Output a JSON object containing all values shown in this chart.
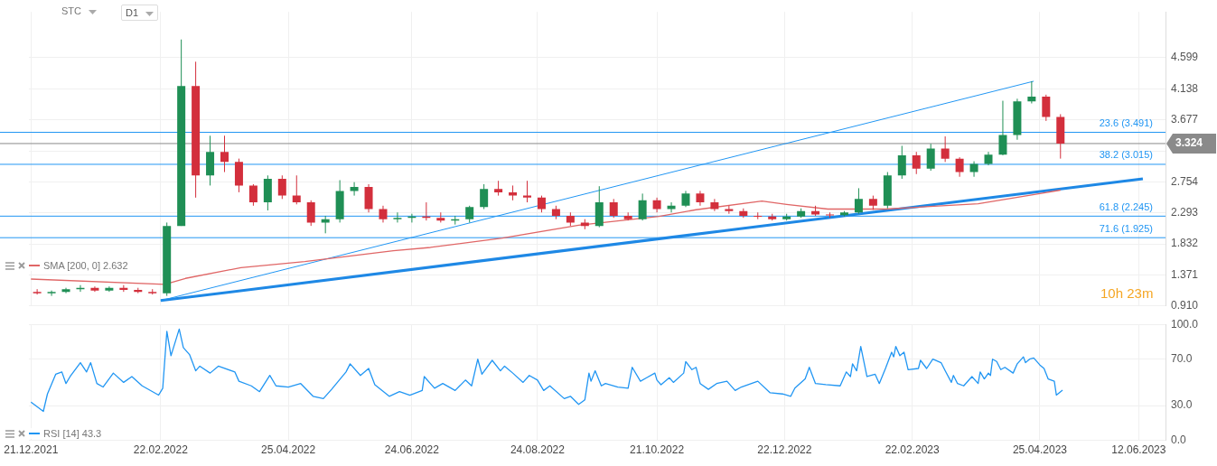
{
  "chart_data": [
    {
      "type": "candlestick",
      "x": [
        "2021-12-24",
        "2021-12-31",
        "2022-01-07",
        "2022-01-14",
        "2022-01-21",
        "2022-01-28",
        "2022-02-04",
        "2022-02-11",
        "2022-02-18",
        "2022-02-25",
        "2022-03-04",
        "2022-03-11",
        "2022-03-18",
        "2022-03-25",
        "2022-04-01",
        "2022-04-08",
        "2022-04-15",
        "2022-04-22",
        "2022-04-29",
        "2022-05-06",
        "2022-05-13",
        "2022-05-20",
        "2022-05-27",
        "2022-06-03",
        "2022-06-10",
        "2022-06-17",
        "2022-06-24",
        "2022-07-01",
        "2022-07-08",
        "2022-07-15",
        "2022-07-22",
        "2022-07-29",
        "2022-08-05",
        "2022-08-12",
        "2022-08-19",
        "2022-08-26",
        "2022-09-02",
        "2022-09-09",
        "2022-09-16",
        "2022-09-23",
        "2022-09-30",
        "2022-10-07",
        "2022-10-14",
        "2022-10-21",
        "2022-10-28",
        "2022-11-04",
        "2022-11-11",
        "2022-11-18",
        "2022-11-25",
        "2022-12-02",
        "2022-12-09",
        "2022-12-16",
        "2022-12-23",
        "2022-12-30",
        "2023-01-06",
        "2023-01-13",
        "2023-01-20",
        "2023-01-27",
        "2023-02-03",
        "2023-02-10",
        "2023-02-17",
        "2023-02-24",
        "2023-03-03",
        "2023-03-10",
        "2023-03-17",
        "2023-03-24",
        "2023-03-31",
        "2023-04-07",
        "2023-04-14",
        "2023-04-21",
        "2023-04-28",
        "2023-05-05"
      ],
      "ohlc": [
        [
          1.12,
          1.16,
          1.08,
          1.1
        ],
        [
          1.1,
          1.14,
          1.06,
          1.12
        ],
        [
          1.12,
          1.18,
          1.1,
          1.16
        ],
        [
          1.16,
          1.22,
          1.12,
          1.18
        ],
        [
          1.18,
          1.2,
          1.12,
          1.14
        ],
        [
          1.14,
          1.2,
          1.12,
          1.18
        ],
        [
          1.18,
          1.22,
          1.12,
          1.15
        ],
        [
          1.15,
          1.18,
          1.1,
          1.12
        ],
        [
          1.12,
          1.16,
          1.08,
          1.1
        ],
        [
          1.1,
          2.15,
          1.06,
          2.1
        ],
        [
          2.1,
          4.87,
          2.1,
          4.18
        ],
        [
          4.18,
          4.54,
          2.52,
          2.85
        ],
        [
          2.85,
          3.44,
          2.7,
          3.2
        ],
        [
          3.2,
          3.44,
          2.9,
          3.05
        ],
        [
          3.05,
          3.1,
          2.6,
          2.7
        ],
        [
          2.7,
          2.72,
          2.4,
          2.45
        ],
        [
          2.45,
          2.85,
          2.33,
          2.8
        ],
        [
          2.8,
          2.85,
          2.5,
          2.55
        ],
        [
          2.55,
          2.85,
          2.42,
          2.45
        ],
        [
          2.45,
          2.48,
          2.1,
          2.15
        ],
        [
          2.15,
          2.25,
          1.99,
          2.2
        ],
        [
          2.2,
          2.78,
          2.15,
          2.62
        ],
        [
          2.62,
          2.75,
          2.55,
          2.68
        ],
        [
          2.68,
          2.72,
          2.3,
          2.35
        ],
        [
          2.35,
          2.4,
          2.15,
          2.2
        ],
        [
          2.2,
          2.3,
          2.15,
          2.22
        ],
        [
          2.22,
          2.28,
          2.15,
          2.24
        ],
        [
          2.24,
          2.45,
          2.18,
          2.22
        ],
        [
          2.22,
          2.3,
          2.15,
          2.18
        ],
        [
          2.18,
          2.25,
          2.12,
          2.2
        ],
        [
          2.2,
          2.4,
          2.15,
          2.38
        ],
        [
          2.38,
          2.72,
          2.35,
          2.65
        ],
        [
          2.65,
          2.77,
          2.55,
          2.6
        ],
        [
          2.6,
          2.7,
          2.48,
          2.55
        ],
        [
          2.55,
          2.77,
          2.45,
          2.52
        ],
        [
          2.52,
          2.55,
          2.3,
          2.35
        ],
        [
          2.35,
          2.4,
          2.2,
          2.25
        ],
        [
          2.25,
          2.3,
          2.1,
          2.15
        ],
        [
          2.15,
          2.2,
          2.05,
          2.1
        ],
        [
          2.1,
          2.69,
          2.08,
          2.45
        ],
        [
          2.45,
          2.5,
          2.22,
          2.25
        ],
        [
          2.25,
          2.3,
          2.18,
          2.2
        ],
        [
          2.2,
          2.58,
          2.18,
          2.48
        ],
        [
          2.48,
          2.52,
          2.3,
          2.35
        ],
        [
          2.35,
          2.45,
          2.3,
          2.4
        ],
        [
          2.4,
          2.62,
          2.38,
          2.58
        ],
        [
          2.58,
          2.62,
          2.4,
          2.45
        ],
        [
          2.45,
          2.5,
          2.32,
          2.35
        ],
        [
          2.35,
          2.4,
          2.28,
          2.32
        ],
        [
          2.32,
          2.36,
          2.22,
          2.25
        ],
        [
          2.25,
          2.3,
          2.2,
          2.24
        ],
        [
          2.24,
          2.28,
          2.18,
          2.2
        ],
        [
          2.2,
          2.28,
          2.18,
          2.24
        ],
        [
          2.24,
          2.36,
          2.22,
          2.32
        ],
        [
          2.32,
          2.4,
          2.25,
          2.27
        ],
        [
          2.27,
          2.3,
          2.22,
          2.26
        ],
        [
          2.26,
          2.32,
          2.24,
          2.3
        ],
        [
          2.3,
          2.66,
          2.28,
          2.5
        ],
        [
          2.5,
          2.55,
          2.34,
          2.4
        ],
        [
          2.4,
          2.9,
          2.36,
          2.85
        ],
        [
          2.85,
          3.29,
          2.8,
          3.15
        ],
        [
          3.15,
          3.2,
          2.87,
          2.95
        ],
        [
          2.95,
          3.32,
          2.92,
          3.25
        ],
        [
          3.25,
          3.43,
          3.05,
          3.1
        ],
        [
          3.1,
          3.12,
          2.83,
          2.9
        ],
        [
          2.9,
          3.06,
          2.83,
          3.02
        ],
        [
          3.02,
          3.2,
          3.0,
          3.16
        ],
        [
          3.16,
          3.96,
          3.15,
          3.45
        ],
        [
          3.45,
          3.99,
          3.38,
          3.95
        ],
        [
          3.95,
          4.25,
          3.92,
          4.02
        ],
        [
          4.02,
          4.05,
          3.66,
          3.72
        ],
        [
          3.72,
          3.76,
          3.1,
          3.324
        ]
      ],
      "colors": [
        "#d32f3c",
        "#1f8f55",
        "#1f8f55",
        "#1f8f55",
        "#d32f3c",
        "#1f8f55",
        "#d32f3c",
        "#d32f3c",
        "#d32f3c",
        "#1f8f55",
        "#1f8f55",
        "#d32f3c",
        "#1f8f55",
        "#d32f3c",
        "#d32f3c",
        "#d32f3c",
        "#1f8f55",
        "#d32f3c",
        "#d32f3c",
        "#d32f3c",
        "#1f8f55",
        "#1f8f55",
        "#1f8f55",
        "#d32f3c",
        "#d32f3c",
        "#1f8f55",
        "#1f8f55",
        "#d32f3c",
        "#d32f3c",
        "#1f8f55",
        "#1f8f55",
        "#1f8f55",
        "#d32f3c",
        "#d32f3c",
        "#d32f3c",
        "#d32f3c",
        "#d32f3c",
        "#d32f3c",
        "#d32f3c",
        "#1f8f55",
        "#d32f3c",
        "#d32f3c",
        "#1f8f55",
        "#d32f3c",
        "#1f8f55",
        "#1f8f55",
        "#d32f3c",
        "#d32f3c",
        "#d32f3c",
        "#d32f3c",
        "#d32f3c",
        "#d32f3c",
        "#1f8f55",
        "#1f8f55",
        "#d32f3c",
        "#d32f3c",
        "#1f8f55",
        "#1f8f55",
        "#d32f3c",
        "#1f8f55",
        "#1f8f55",
        "#d32f3c",
        "#1f8f55",
        "#d32f3c",
        "#d32f3c",
        "#1f8f55",
        "#1f8f55",
        "#1f8f55",
        "#1f8f55",
        "#1f8f55",
        "#d32f3c",
        "#d32f3c"
      ],
      "series": [
        {
          "name": "SMA [200, 0] 2.632",
          "type": "line",
          "color": "#e06666",
          "x": [
            "2021-12-21",
            "2022-02-24",
            "2022-03-06",
            "2022-04-02",
            "2022-05-03",
            "2022-06-15",
            "2022-07-03",
            "2022-08-07",
            "2022-09-13",
            "2022-10-22",
            "2022-11-09",
            "2022-12-11",
            "2022-12-23",
            "2023-01-12",
            "2023-02-09",
            "2023-03-26",
            "2023-04-25",
            "2023-05-05"
          ],
          "values": [
            1.31,
            1.23,
            1.32,
            1.48,
            1.57,
            1.73,
            1.78,
            1.92,
            2.11,
            2.24,
            2.34,
            2.47,
            2.42,
            2.35,
            2.35,
            2.43,
            2.58,
            2.632
          ]
        },
        {
          "type": "line",
          "color": "#2196f3",
          "x": [
            "2022-02-22",
            "2023-04-22"
          ],
          "values": [
            0.99,
            4.25
          ]
        },
        {
          "type": "line",
          "color": "#1e88e5",
          "x": [
            "2022-02-22",
            "2023-06-14"
          ],
          "values": [
            0.99,
            2.8
          ]
        }
      ],
      "xlim": [
        "2021-12-20",
        "2023-06-25"
      ],
      "xticks": [
        {
          "value": "2021-12-21",
          "label": null
        },
        {
          "value": "2022-02-22",
          "label": null
        },
        {
          "value": "2022-04-25",
          "label": null
        },
        {
          "value": "2022-06-24",
          "label": null
        },
        {
          "value": "2022-08-24",
          "label": null
        },
        {
          "value": "2022-10-21",
          "label": null
        },
        {
          "value": "2022-12-22",
          "label": null
        },
        {
          "value": "2023-02-22",
          "label": null
        },
        {
          "value": "2023-04-25",
          "label": null
        },
        {
          "value": "2023-06-12",
          "label": null
        }
      ],
      "ylim": [
        0.91,
        5.28
      ],
      "yticks": [
        {
          "value": 0.91,
          "label": "0.910"
        },
        1.371,
        1.832,
        2.293,
        2.754,
        {
          "value": 3.215,
          "label": null
        },
        3.677,
        4.138,
        4.599
      ],
      "ref_lines": [
        {
          "axis": "y",
          "value": 3.491,
          "label": "23.6 (3.491)",
          "color": "#2196f3"
        },
        {
          "axis": "y",
          "value": 3.015,
          "label": "38.2 (3.015)",
          "color": "#2196f3"
        },
        {
          "axis": "y",
          "value": 2.245,
          "label": "61.8 (2.245)",
          "color": "#2196f3"
        },
        {
          "axis": "y",
          "value": 1.925,
          "label": "71.6 (1.925)",
          "color": "#2196f3"
        },
        {
          "axis": "y",
          "value": 3.324,
          "label": "3.324",
          "color": "#8a8a8a"
        }
      ],
      "annotations": [
        "STC",
        "D1",
        "10h 23m"
      ],
      "grid": true,
      "legend": "bottom left",
      "marker": "none",
      "tick_labels": "y"
    },
    {
      "type": "line",
      "series": [
        {
          "name": "RSI [14] 43.3",
          "color": "#2196f3",
          "x": [
            "2021-12-21",
            "2021-12-27",
            "2021-12-29",
            "2022-01-02",
            "2022-01-05",
            "2022-01-07",
            "2022-01-09",
            "2022-01-14",
            "2022-01-17",
            "2022-01-19",
            "2022-01-22",
            "2022-01-25",
            "2022-01-30",
            "2022-02-04",
            "2022-02-08",
            "2022-02-13",
            "2022-02-21",
            "2022-02-23",
            "2022-02-25",
            "2022-02-27",
            "2022-03-03",
            "2022-03-05",
            "2022-03-08",
            "2022-03-11",
            "2022-03-13",
            "2022-03-18",
            "2022-03-22",
            "2022-03-30",
            "2022-04-01",
            "2022-04-07",
            "2022-04-11",
            "2022-04-16",
            "2022-04-19",
            "2022-04-25",
            "2022-05-01",
            "2022-05-07",
            "2022-05-12",
            "2022-05-16",
            "2022-05-23",
            "2022-05-25",
            "2022-05-30",
            "2022-06-03",
            "2022-06-06",
            "2022-06-13",
            "2022-06-18",
            "2022-06-23",
            "2022-06-29",
            "2022-06-30",
            "2022-07-05",
            "2022-07-09",
            "2022-07-15",
            "2022-07-20",
            "2022-07-23",
            "2022-07-26",
            "2022-07-28",
            "2022-08-02",
            "2022-08-06",
            "2022-08-08",
            "2022-08-12",
            "2022-08-17",
            "2022-08-20",
            "2022-08-24",
            "2022-08-27",
            "2022-08-30",
            "2022-09-06",
            "2022-09-09",
            "2022-09-13",
            "2022-09-16",
            "2022-09-18",
            "2022-09-19",
            "2022-09-21",
            "2022-09-24",
            "2022-09-26",
            "2022-10-02",
            "2022-10-07",
            "2022-10-09",
            "2022-10-13",
            "2022-10-16",
            "2022-10-20",
            "2022-10-21",
            "2022-10-23",
            "2022-10-27",
            "2022-10-29",
            "2022-11-03",
            "2022-11-04",
            "2022-11-07",
            "2022-11-09",
            "2022-11-11",
            "2022-11-15",
            "2022-11-19",
            "2022-11-24",
            "2022-11-28",
            "2022-12-01",
            "2022-12-09",
            "2022-12-15",
            "2022-12-21",
            "2022-12-25",
            "2022-12-27",
            "2023-01-01",
            "2023-01-03",
            "2023-01-06",
            "2023-01-11",
            "2023-01-18",
            "2023-01-21",
            "2023-01-23",
            "2023-01-24",
            "2023-01-26",
            "2023-01-28",
            "2023-01-31",
            "2023-02-04",
            "2023-02-06",
            "2023-02-09",
            "2023-02-12",
            "2023-02-13",
            "2023-02-14",
            "2023-02-16",
            "2023-02-18",
            "2023-02-20",
            "2023-02-25",
            "2023-02-26",
            "2023-03-01",
            "2023-03-04",
            "2023-03-08",
            "2023-03-10",
            "2023-03-13",
            "2023-03-14",
            "2023-03-16",
            "2023-03-19",
            "2023-03-23",
            "2023-03-26",
            "2023-03-27",
            "2023-03-29",
            "2023-03-31",
            "2023-04-01",
            "2023-04-02",
            "2023-04-04",
            "2023-04-06",
            "2023-04-08",
            "2023-04-12",
            "2023-04-14",
            "2023-04-17",
            "2023-04-18",
            "2023-04-20",
            "2023-04-22",
            "2023-04-25",
            "2023-04-27",
            "2023-04-29",
            "2023-05-02",
            "2023-05-03",
            "2023-05-06"
          ],
          "values": [
            33,
            25,
            40,
            57,
            59,
            49,
            55,
            67,
            59,
            67,
            49,
            46,
            58,
            50,
            55,
            47,
            39,
            45,
            94,
            73,
            96,
            80,
            74,
            60,
            64,
            58,
            64,
            59,
            51,
            47,
            42,
            56,
            47,
            46,
            49,
            38,
            36,
            44,
            59,
            66,
            56,
            62,
            48,
            38,
            42,
            39,
            43,
            55,
            45,
            49,
            43,
            52,
            47,
            70,
            57,
            69,
            60,
            64,
            58,
            50,
            56,
            52,
            43,
            47,
            36,
            38,
            31,
            35,
            58,
            51,
            60,
            47,
            49,
            46,
            45,
            63,
            51,
            54,
            58,
            52,
            48,
            54,
            50,
            58,
            68,
            61,
            63,
            49,
            44,
            49,
            51,
            43,
            46,
            51,
            41,
            40,
            38,
            45,
            53,
            63,
            49,
            48,
            47,
            59,
            55,
            66,
            60,
            81,
            55,
            57,
            49,
            62,
            76,
            72,
            81,
            73,
            76,
            61,
            62,
            69,
            62,
            70,
            67,
            60,
            50,
            56,
            49,
            47,
            55,
            49,
            59,
            53,
            58,
            56,
            70,
            68,
            61,
            63,
            58,
            66,
            72,
            67,
            70,
            71,
            65,
            62,
            53,
            51,
            39,
            43.3
          ]
        }
      ],
      "xlim": [
        "2021-12-20",
        "2023-06-25"
      ],
      "xticks": [
        {
          "value": "2021-12-21",
          "label": "21.12.2021"
        },
        {
          "value": "2022-02-22",
          "label": "22.02.2022"
        },
        {
          "value": "2022-04-25",
          "label": "25.04.2022"
        },
        {
          "value": "2022-06-24",
          "label": "24.06.2022"
        },
        {
          "value": "2022-08-24",
          "label": "24.08.2022"
        },
        {
          "value": "2022-10-21",
          "label": "21.10.2022"
        },
        {
          "value": "2022-12-22",
          "label": "22.12.2022"
        },
        {
          "value": "2023-02-22",
          "label": "22.02.2023"
        },
        {
          "value": "2023-04-25",
          "label": "25.04.2023"
        },
        {
          "value": "2023-06-12",
          "label": "12.06.2023"
        }
      ],
      "ylim": [
        0,
        100
      ],
      "yticks": [
        {
          "value": 0,
          "label": "0.0"
        },
        {
          "value": 30,
          "label": "30.0"
        },
        {
          "value": 70,
          "label": "70.0"
        },
        {
          "value": 100,
          "label": "100.0"
        }
      ],
      "grid": true,
      "legend": "bottom left",
      "marker": "none"
    }
  ]
}
